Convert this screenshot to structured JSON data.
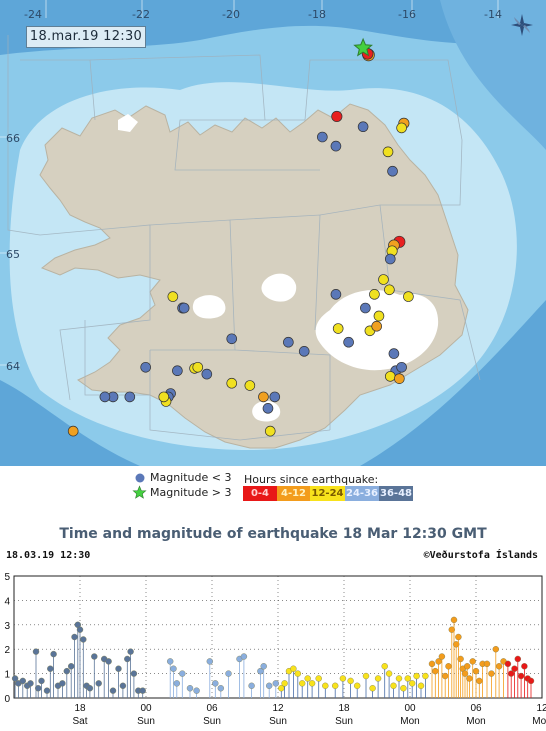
{
  "map": {
    "timestamp": "18.mar.19  12:30",
    "lon_labels": [
      "-24",
      "-22",
      "-20",
      "-18",
      "-16",
      "-14"
    ],
    "lat_labels": [
      "66",
      "65",
      "64"
    ],
    "compass_icon": "compass-rose-icon",
    "colors": {
      "sea_deep": "#5ea6d8",
      "sea_mid": "#8ccaea",
      "sea_shallow": "#c4e6f5",
      "land": "#d6d0c0",
      "glacier": "#ffffff"
    },
    "earthquakes": [
      {
        "lon": -16.88,
        "lat": 66.72,
        "color": "#f0a020",
        "mag": 1.6
      },
      {
        "lon": -16.9,
        "lat": 66.73,
        "color": "#e82020",
        "mag": 1.2
      },
      {
        "lon": -17.58,
        "lat": 66.18,
        "color": "#e82020",
        "mag": 1.0
      },
      {
        "lon": -16.1,
        "lat": 66.12,
        "color": "#f0a020",
        "mag": 1.0
      },
      {
        "lon": -16.15,
        "lat": 66.08,
        "color": "#f0e020",
        "mag": 0.8
      },
      {
        "lon": -17.0,
        "lat": 66.09,
        "color": "#5b78b8",
        "mag": 0.8
      },
      {
        "lon": -17.9,
        "lat": 66.0,
        "color": "#5b78b8",
        "mag": 0.8
      },
      {
        "lon": -17.6,
        "lat": 65.92,
        "color": "#5b78b8",
        "mag": 0.8
      },
      {
        "lon": -16.45,
        "lat": 65.87,
        "color": "#f0e020",
        "mag": 0.8
      },
      {
        "lon": -16.35,
        "lat": 65.7,
        "color": "#5b78b8",
        "mag": 0.8
      },
      {
        "lon": -16.2,
        "lat": 65.08,
        "color": "#e82020",
        "mag": 1.4
      },
      {
        "lon": -16.32,
        "lat": 65.05,
        "color": "#f0a020",
        "mag": 1.2
      },
      {
        "lon": -16.36,
        "lat": 65.0,
        "color": "#f0e020",
        "mag": 1.0
      },
      {
        "lon": -16.4,
        "lat": 64.93,
        "color": "#5b78b8",
        "mag": 0.8
      },
      {
        "lon": -16.55,
        "lat": 64.75,
        "color": "#f0e020",
        "mag": 0.8
      },
      {
        "lon": -16.42,
        "lat": 64.66,
        "color": "#f0e020",
        "mag": 0.8
      },
      {
        "lon": -16.75,
        "lat": 64.62,
        "color": "#f0e020",
        "mag": 0.8
      },
      {
        "lon": -17.6,
        "lat": 64.62,
        "color": "#5b78b8",
        "mag": 0.8
      },
      {
        "lon": -16.0,
        "lat": 64.6,
        "color": "#f0e020",
        "mag": 0.8
      },
      {
        "lon": -16.95,
        "lat": 64.5,
        "color": "#5b78b8",
        "mag": 0.8
      },
      {
        "lon": -16.65,
        "lat": 64.43,
        "color": "#f0e020",
        "mag": 0.8
      },
      {
        "lon": -16.85,
        "lat": 64.3,
        "color": "#f0e020",
        "mag": 0.8
      },
      {
        "lon": -16.7,
        "lat": 64.34,
        "color": "#f0a020",
        "mag": 0.8
      },
      {
        "lon": -17.32,
        "lat": 64.2,
        "color": "#5b78b8",
        "mag": 0.8
      },
      {
        "lon": -17.55,
        "lat": 64.32,
        "color": "#f0e020",
        "mag": 0.8
      },
      {
        "lon": -16.32,
        "lat": 64.1,
        "color": "#5b78b8",
        "mag": 0.8
      },
      {
        "lon": -16.28,
        "lat": 63.95,
        "color": "#5b78b8",
        "mag": 0.8
      },
      {
        "lon": -16.15,
        "lat": 63.98,
        "color": "#5b78b8",
        "mag": 0.8
      },
      {
        "lon": -16.4,
        "lat": 63.9,
        "color": "#f0e020",
        "mag": 0.8
      },
      {
        "lon": -16.2,
        "lat": 63.88,
        "color": "#f0a020",
        "mag": 0.8
      },
      {
        "lon": -20.98,
        "lat": 64.5,
        "color": "#5b78b8",
        "mag": 1.0
      },
      {
        "lon": -20.95,
        "lat": 64.5,
        "color": "#5b78b8",
        "mag": 0.8
      },
      {
        "lon": -21.2,
        "lat": 64.6,
        "color": "#f0e020",
        "mag": 0.8
      },
      {
        "lon": -19.9,
        "lat": 64.23,
        "color": "#5b78b8",
        "mag": 0.8
      },
      {
        "lon": -18.65,
        "lat": 64.2,
        "color": "#5b78b8",
        "mag": 0.8
      },
      {
        "lon": -18.3,
        "lat": 64.12,
        "color": "#5b78b8",
        "mag": 0.8
      },
      {
        "lon": -21.8,
        "lat": 63.98,
        "color": "#5b78b8",
        "mag": 0.8
      },
      {
        "lon": -21.1,
        "lat": 63.95,
        "color": "#5b78b8",
        "mag": 0.8
      },
      {
        "lon": -20.72,
        "lat": 63.97,
        "color": "#f0e020",
        "mag": 0.8
      },
      {
        "lon": -20.65,
        "lat": 63.98,
        "color": "#f0e020",
        "mag": 0.8
      },
      {
        "lon": -20.45,
        "lat": 63.92,
        "color": "#5b78b8",
        "mag": 0.8
      },
      {
        "lon": -19.9,
        "lat": 63.84,
        "color": "#f0e020",
        "mag": 0.8
      },
      {
        "lon": -19.5,
        "lat": 63.82,
        "color": "#f0e020",
        "mag": 0.8
      },
      {
        "lon": -18.95,
        "lat": 63.72,
        "color": "#5b78b8",
        "mag": 0.8
      },
      {
        "lon": -22.52,
        "lat": 63.72,
        "color": "#5b78b8",
        "mag": 0.8
      },
      {
        "lon": -22.15,
        "lat": 63.72,
        "color": "#5b78b8",
        "mag": 0.8
      },
      {
        "lon": -21.25,
        "lat": 63.75,
        "color": "#5b78b8",
        "mag": 0.8
      },
      {
        "lon": -21.3,
        "lat": 63.72,
        "color": "#5b78b8",
        "mag": 0.8
      },
      {
        "lon": -21.35,
        "lat": 63.68,
        "color": "#f0e020",
        "mag": 0.8
      },
      {
        "lon": -21.4,
        "lat": 63.72,
        "color": "#f0e020",
        "mag": 0.8
      },
      {
        "lon": -22.7,
        "lat": 63.72,
        "color": "#5b78b8",
        "mag": 0.8
      },
      {
        "lon": -19.2,
        "lat": 63.72,
        "color": "#f0a020",
        "mag": 0.8
      },
      {
        "lon": -19.1,
        "lat": 63.62,
        "color": "#5b78b8",
        "mag": 0.8
      },
      {
        "lon": -19.05,
        "lat": 63.42,
        "color": "#f0e020",
        "mag": 0.8
      },
      {
        "lon": -23.4,
        "lat": 63.42,
        "color": "#f0a020",
        "mag": 0.8
      }
    ],
    "star": {
      "lon": -17.0,
      "lat": 66.78,
      "color": "#44d040"
    }
  },
  "legend": {
    "mag_small_label": "Magnitude < 3",
    "mag_large_label": "Magnitude > 3",
    "hours_title": "Hours since earthquake:",
    "hour_bins": [
      {
        "label": "0-4",
        "bg": "#e81818",
        "fg": "#ffd0d0"
      },
      {
        "label": "4-12",
        "bg": "#f39c1c",
        "fg": "#fff2c0"
      },
      {
        "label": "12-24",
        "bg": "#f8e21c",
        "fg": "#7a5a00"
      },
      {
        "label": "24-36",
        "bg": "#8aaede",
        "fg": "#e8f0ff"
      },
      {
        "label": "36-48",
        "bg": "#5a7498",
        "fg": "#e8f0ff"
      }
    ]
  },
  "chart": {
    "title": "Time and magnitude of earthquake   18 Mar 12:30 GMT",
    "timestamp": "18.03.19 12:30",
    "copyright": "©Veðurstofa Íslands"
  },
  "chart_data": {
    "type": "scatter",
    "title": "Time and magnitude of earthquake   18 Mar 12:30 GMT",
    "xlabel": "",
    "ylabel": "",
    "ylim": [
      0,
      5
    ],
    "yticks": [
      0,
      1,
      2,
      3,
      4,
      5
    ],
    "x_unit": "hours since 16.03.19 12:00",
    "xlim": [
      0,
      48
    ],
    "xticks": [
      {
        "x": 6,
        "top": "18",
        "bottom": "Sat"
      },
      {
        "x": 12,
        "top": "00",
        "bottom": "Sun"
      },
      {
        "x": 18,
        "top": "06",
        "bottom": "Sun"
      },
      {
        "x": 24,
        "top": "12",
        "bottom": "Sun"
      },
      {
        "x": 30,
        "top": "18",
        "bottom": "Sun"
      },
      {
        "x": 36,
        "top": "00",
        "bottom": "Mon"
      },
      {
        "x": 42,
        "top": "06",
        "bottom": "Mon"
      },
      {
        "x": 48,
        "top": "12",
        "bottom": "Mon"
      }
    ],
    "points": [
      [
        0.1,
        0.8,
        "#5a7498"
      ],
      [
        0.4,
        0.6,
        "#5a7498"
      ],
      [
        0.8,
        0.7,
        "#5a7498"
      ],
      [
        1.2,
        0.5,
        "#5a7498"
      ],
      [
        1.5,
        0.6,
        "#5a7498"
      ],
      [
        2.0,
        1.9,
        "#5a7498"
      ],
      [
        2.2,
        0.4,
        "#5a7498"
      ],
      [
        2.5,
        0.7,
        "#5a7498"
      ],
      [
        3.0,
        0.3,
        "#5a7498"
      ],
      [
        3.3,
        1.2,
        "#5a7498"
      ],
      [
        3.6,
        1.8,
        "#5a7498"
      ],
      [
        4.0,
        0.5,
        "#5a7498"
      ],
      [
        4.4,
        0.6,
        "#5a7498"
      ],
      [
        4.8,
        1.1,
        "#5a7498"
      ],
      [
        5.2,
        1.3,
        "#5a7498"
      ],
      [
        5.5,
        2.5,
        "#5a7498"
      ],
      [
        5.8,
        3.0,
        "#5a7498"
      ],
      [
        6.0,
        2.8,
        "#5a7498"
      ],
      [
        6.3,
        2.4,
        "#5a7498"
      ],
      [
        6.6,
        0.5,
        "#5a7498"
      ],
      [
        6.9,
        0.4,
        "#5a7498"
      ],
      [
        7.3,
        1.7,
        "#5a7498"
      ],
      [
        7.7,
        0.6,
        "#5a7498"
      ],
      [
        8.2,
        1.6,
        "#5a7498"
      ],
      [
        8.6,
        1.5,
        "#5a7498"
      ],
      [
        9.0,
        0.3,
        "#5a7498"
      ],
      [
        9.5,
        1.2,
        "#5a7498"
      ],
      [
        9.9,
        0.5,
        "#5a7498"
      ],
      [
        10.3,
        1.6,
        "#5a7498"
      ],
      [
        10.6,
        1.9,
        "#5a7498"
      ],
      [
        10.9,
        1.0,
        "#5a7498"
      ],
      [
        11.3,
        0.3,
        "#5a7498"
      ],
      [
        11.7,
        0.3,
        "#5a7498"
      ],
      [
        14.2,
        1.5,
        "#8aaede"
      ],
      [
        14.5,
        1.2,
        "#8aaede"
      ],
      [
        14.8,
        0.6,
        "#8aaede"
      ],
      [
        15.3,
        1.0,
        "#8aaede"
      ],
      [
        16.0,
        0.4,
        "#8aaede"
      ],
      [
        16.6,
        0.3,
        "#8aaede"
      ],
      [
        17.8,
        1.5,
        "#8aaede"
      ],
      [
        18.3,
        0.6,
        "#8aaede"
      ],
      [
        18.8,
        0.4,
        "#8aaede"
      ],
      [
        19.5,
        1.0,
        "#8aaede"
      ],
      [
        20.5,
        1.6,
        "#8aaede"
      ],
      [
        20.9,
        1.7,
        "#8aaede"
      ],
      [
        21.6,
        0.5,
        "#8aaede"
      ],
      [
        22.4,
        1.1,
        "#8aaede"
      ],
      [
        22.7,
        1.3,
        "#8aaede"
      ],
      [
        23.2,
        0.5,
        "#8aaede"
      ],
      [
        23.8,
        0.6,
        "#8aaede"
      ],
      [
        24.3,
        0.4,
        "#f8e21c"
      ],
      [
        24.6,
        0.6,
        "#f8e21c"
      ],
      [
        25.0,
        1.1,
        "#f8e21c"
      ],
      [
        25.4,
        1.2,
        "#f8e21c"
      ],
      [
        25.8,
        1.0,
        "#f8e21c"
      ],
      [
        26.2,
        0.6,
        "#f8e21c"
      ],
      [
        26.7,
        0.8,
        "#f8e21c"
      ],
      [
        27.1,
        0.6,
        "#f8e21c"
      ],
      [
        27.7,
        0.8,
        "#f8e21c"
      ],
      [
        28.3,
        0.5,
        "#f8e21c"
      ],
      [
        29.2,
        0.5,
        "#f8e21c"
      ],
      [
        29.9,
        0.8,
        "#f8e21c"
      ],
      [
        30.6,
        0.7,
        "#f8e21c"
      ],
      [
        31.2,
        0.5,
        "#f8e21c"
      ],
      [
        32.0,
        0.9,
        "#f8e21c"
      ],
      [
        32.6,
        0.4,
        "#f8e21c"
      ],
      [
        33.1,
        0.8,
        "#f8e21c"
      ],
      [
        33.7,
        1.3,
        "#f8e21c"
      ],
      [
        34.1,
        1.0,
        "#f8e21c"
      ],
      [
        34.5,
        0.5,
        "#f8e21c"
      ],
      [
        35.0,
        0.8,
        "#f8e21c"
      ],
      [
        35.4,
        0.4,
        "#f8e21c"
      ],
      [
        35.8,
        0.8,
        "#f8e21c"
      ],
      [
        36.2,
        0.6,
        "#f8e21c"
      ],
      [
        36.6,
        0.9,
        "#f8e21c"
      ],
      [
        37.0,
        0.5,
        "#f8e21c"
      ],
      [
        37.4,
        0.9,
        "#f8e21c"
      ],
      [
        38.0,
        1.4,
        "#f39c1c"
      ],
      [
        38.3,
        1.1,
        "#f39c1c"
      ],
      [
        38.6,
        1.5,
        "#f39c1c"
      ],
      [
        38.9,
        1.7,
        "#f39c1c"
      ],
      [
        39.2,
        0.9,
        "#f39c1c"
      ],
      [
        39.5,
        1.3,
        "#f39c1c"
      ],
      [
        39.8,
        2.8,
        "#f39c1c"
      ],
      [
        40.0,
        3.2,
        "#f39c1c"
      ],
      [
        40.2,
        2.2,
        "#f39c1c"
      ],
      [
        40.4,
        2.5,
        "#f39c1c"
      ],
      [
        40.6,
        1.6,
        "#f39c1c"
      ],
      [
        40.8,
        1.2,
        "#f39c1c"
      ],
      [
        41.0,
        1.0,
        "#f39c1c"
      ],
      [
        41.2,
        1.3,
        "#f39c1c"
      ],
      [
        41.4,
        0.8,
        "#f39c1c"
      ],
      [
        41.7,
        1.5,
        "#f39c1c"
      ],
      [
        42.0,
        1.1,
        "#f39c1c"
      ],
      [
        42.3,
        0.7,
        "#f39c1c"
      ],
      [
        42.6,
        1.4,
        "#f39c1c"
      ],
      [
        43.0,
        1.4,
        "#f39c1c"
      ],
      [
        43.4,
        1.0,
        "#f39c1c"
      ],
      [
        43.8,
        2.0,
        "#f39c1c"
      ],
      [
        44.1,
        1.3,
        "#f39c1c"
      ],
      [
        44.5,
        1.5,
        "#f39c1c"
      ],
      [
        44.9,
        1.4,
        "#e81818"
      ],
      [
        45.2,
        1.0,
        "#e81818"
      ],
      [
        45.5,
        1.2,
        "#e81818"
      ],
      [
        45.8,
        1.6,
        "#e81818"
      ],
      [
        46.1,
        0.9,
        "#e81818"
      ],
      [
        46.4,
        1.3,
        "#e81818"
      ],
      [
        46.7,
        0.8,
        "#e81818"
      ],
      [
        47.0,
        0.7,
        "#e81818"
      ]
    ],
    "grid": true
  }
}
